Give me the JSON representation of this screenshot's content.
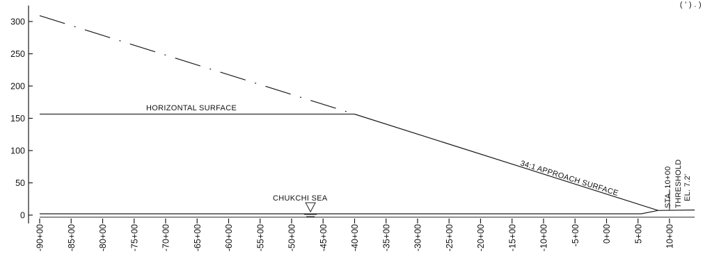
{
  "chart_data": {
    "type": "line",
    "x_axis": {
      "unit": "station",
      "range": [
        -90,
        14
      ],
      "ticks": [
        {
          "value": -90,
          "label": "-90+00"
        },
        {
          "value": -85,
          "label": "-85+00"
        },
        {
          "value": -80,
          "label": "-80+00"
        },
        {
          "value": -75,
          "label": "-75+00"
        },
        {
          "value": -70,
          "label": "-70+00"
        },
        {
          "value": -65,
          "label": "-65+00"
        },
        {
          "value": -60,
          "label": "-60+00"
        },
        {
          "value": -55,
          "label": "-55+00"
        },
        {
          "value": -50,
          "label": "-50+00"
        },
        {
          "value": -45,
          "label": "-45+00"
        },
        {
          "value": -40,
          "label": "-40+00"
        },
        {
          "value": -35,
          "label": "-35+00"
        },
        {
          "value": -30,
          "label": "-30+00"
        },
        {
          "value": -25,
          "label": "-25+00"
        },
        {
          "value": -20,
          "label": "-20+00"
        },
        {
          "value": -15,
          "label": "-15+00"
        },
        {
          "value": -10,
          "label": "-10+00"
        },
        {
          "value": -5,
          "label": "-5+00"
        },
        {
          "value": 0,
          "label": "0+00"
        },
        {
          "value": 5,
          "label": "5+00"
        },
        {
          "value": 10,
          "label": "10+00"
        }
      ]
    },
    "y_axis": {
      "range": [
        0,
        320
      ],
      "ticks": [
        {
          "value": 0,
          "label": "0"
        },
        {
          "value": 50,
          "label": "50"
        },
        {
          "value": 100,
          "label": "100"
        },
        {
          "value": 150,
          "label": "150"
        },
        {
          "value": 200,
          "label": "200"
        },
        {
          "value": 250,
          "label": "250"
        },
        {
          "value": 300,
          "label": "300"
        }
      ]
    },
    "grid": false,
    "surfaces": {
      "approach_solid": [
        [
          -40,
          156.5
        ],
        [
          8.2,
          7.2
        ]
      ],
      "approach_dashed": [
        [
          -90,
          309
        ],
        [
          -40,
          156.5
        ]
      ],
      "horizontal": {
        "y": 156.5,
        "x": [
          -90,
          -40
        ]
      },
      "ground": [
        [
          -90,
          2
        ],
        [
          5.5,
          2
        ],
        [
          8.2,
          7.2
        ],
        [
          14,
          8
        ]
      ],
      "water_line": {
        "y": 0,
        "x": [
          -90,
          14
        ]
      },
      "threshold_marker": {
        "x": 10,
        "y": [
          7.2,
          40
        ]
      },
      "water_symbol": {
        "x": -47,
        "y": 2
      }
    },
    "annotations": {
      "horizontal_surface": "HORIZONTAL SURFACE",
      "approach_surface": "34:1 APPROACH SURFACE",
      "sea": "CHUKCHI SEA",
      "station": "STA. 10+00",
      "threshold": "THRESHOLD",
      "elevation": "EL. 7.2'"
    },
    "corner_fragment": "( ' ) . )"
  }
}
